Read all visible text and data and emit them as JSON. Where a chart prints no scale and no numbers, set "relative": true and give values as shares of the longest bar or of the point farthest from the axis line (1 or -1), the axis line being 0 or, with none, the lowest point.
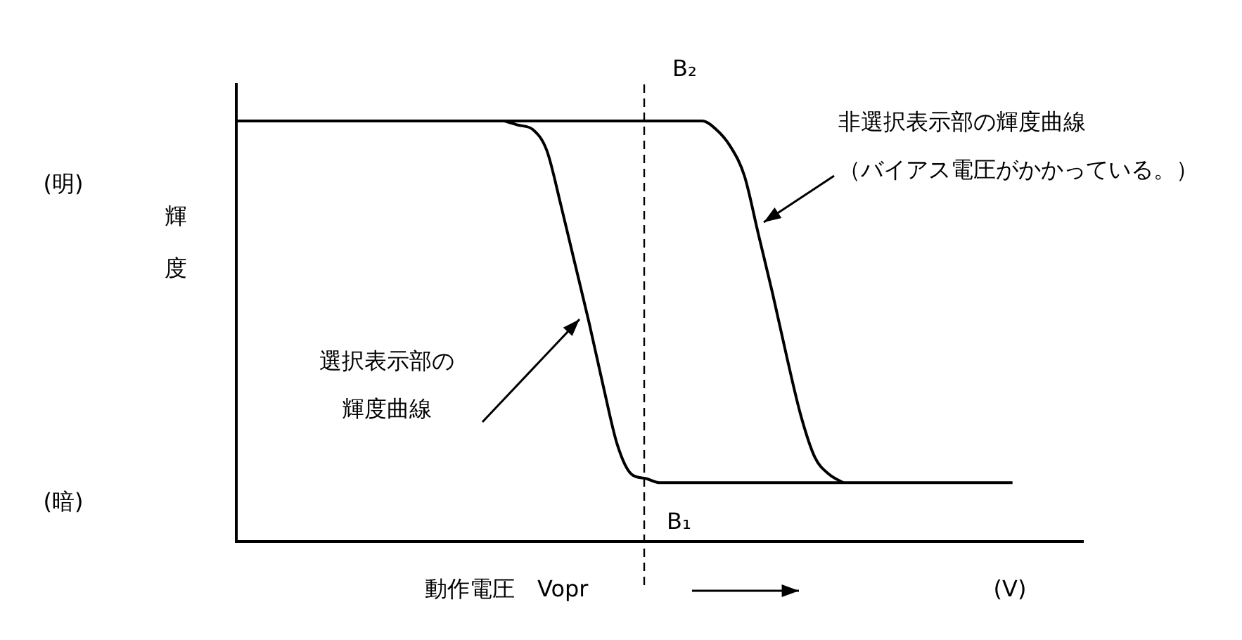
{
  "chart_data": {
    "type": "line",
    "relative": true,
    "legend": false,
    "grid": false,
    "tick_labels": false,
    "marker": "none",
    "line_style": "solid",
    "xlabel": "動作電圧　Vopr",
    "ylabel": "輝度",
    "categories": [
      null,
      null,
      null,
      null,
      null,
      null,
      null,
      null,
      null,
      null,
      null,
      null,
      null,
      null,
      null,
      null,
      null,
      null,
      null,
      null,
      null,
      null,
      null,
      null,
      null,
      null,
      null,
      null,
      null,
      null,
      null,
      null,
      null,
      null,
      null,
      null,
      null,
      null,
      null,
      null,
      null,
      null,
      null,
      null,
      null,
      null,
      null,
      null,
      null,
      null,
      null,
      null,
      null,
      null,
      null,
      null,
      null,
      null,
      null,
      null,
      null
    ],
    "series": [
      {
        "color": "#000000",
        "values": [
          null,
          null,
          null,
          null,
          null,
          null,
          null,
          null,
          null,
          null,
          null,
          null,
          null,
          null,
          null,
          null,
          null,
          null,
          null,
          1,
          0.99,
          0.98,
          0.93,
          0.8,
          0.66,
          0.52,
          0.37,
          0.23,
          0.16,
          0.15,
          0.14,
          0.14,
          0.14,
          0.14,
          0.14,
          0.14,
          0.14,
          0.14,
          0.14,
          0.14,
          0.14,
          0.14,
          0.14,
          0.14,
          0.14,
          0.14,
          0.14,
          0.14,
          0.14,
          0.14,
          0.14,
          0.14,
          0.14,
          0.14,
          0.14,
          0.14,
          null,
          null,
          null,
          null,
          null
        ]
      },
      {
        "color": "#000000",
        "values": [
          1,
          1,
          1,
          1,
          1,
          1,
          1,
          1,
          1,
          1,
          1,
          1,
          1,
          1,
          1,
          1,
          1,
          1,
          1,
          1,
          1,
          1,
          1,
          1,
          1,
          1,
          1,
          1,
          1,
          1,
          1,
          1,
          1,
          1,
          0.98,
          0.94,
          0.87,
          0.73,
          0.59,
          0.44,
          0.3,
          0.2,
          0.16,
          0.14,
          null,
          null,
          null,
          null,
          null,
          null,
          null,
          null,
          null,
          null,
          null,
          null,
          null,
          null,
          null,
          null,
          null
        ]
      }
    ],
    "annotations": [
      "B₂",
      "B₁",
      "(明)",
      "(暗)",
      "(V)",
      "選択表示部の輝度曲線",
      "非選択表示部の輝度曲線（バイアス電圧がかかっている。）"
    ]
  }
}
